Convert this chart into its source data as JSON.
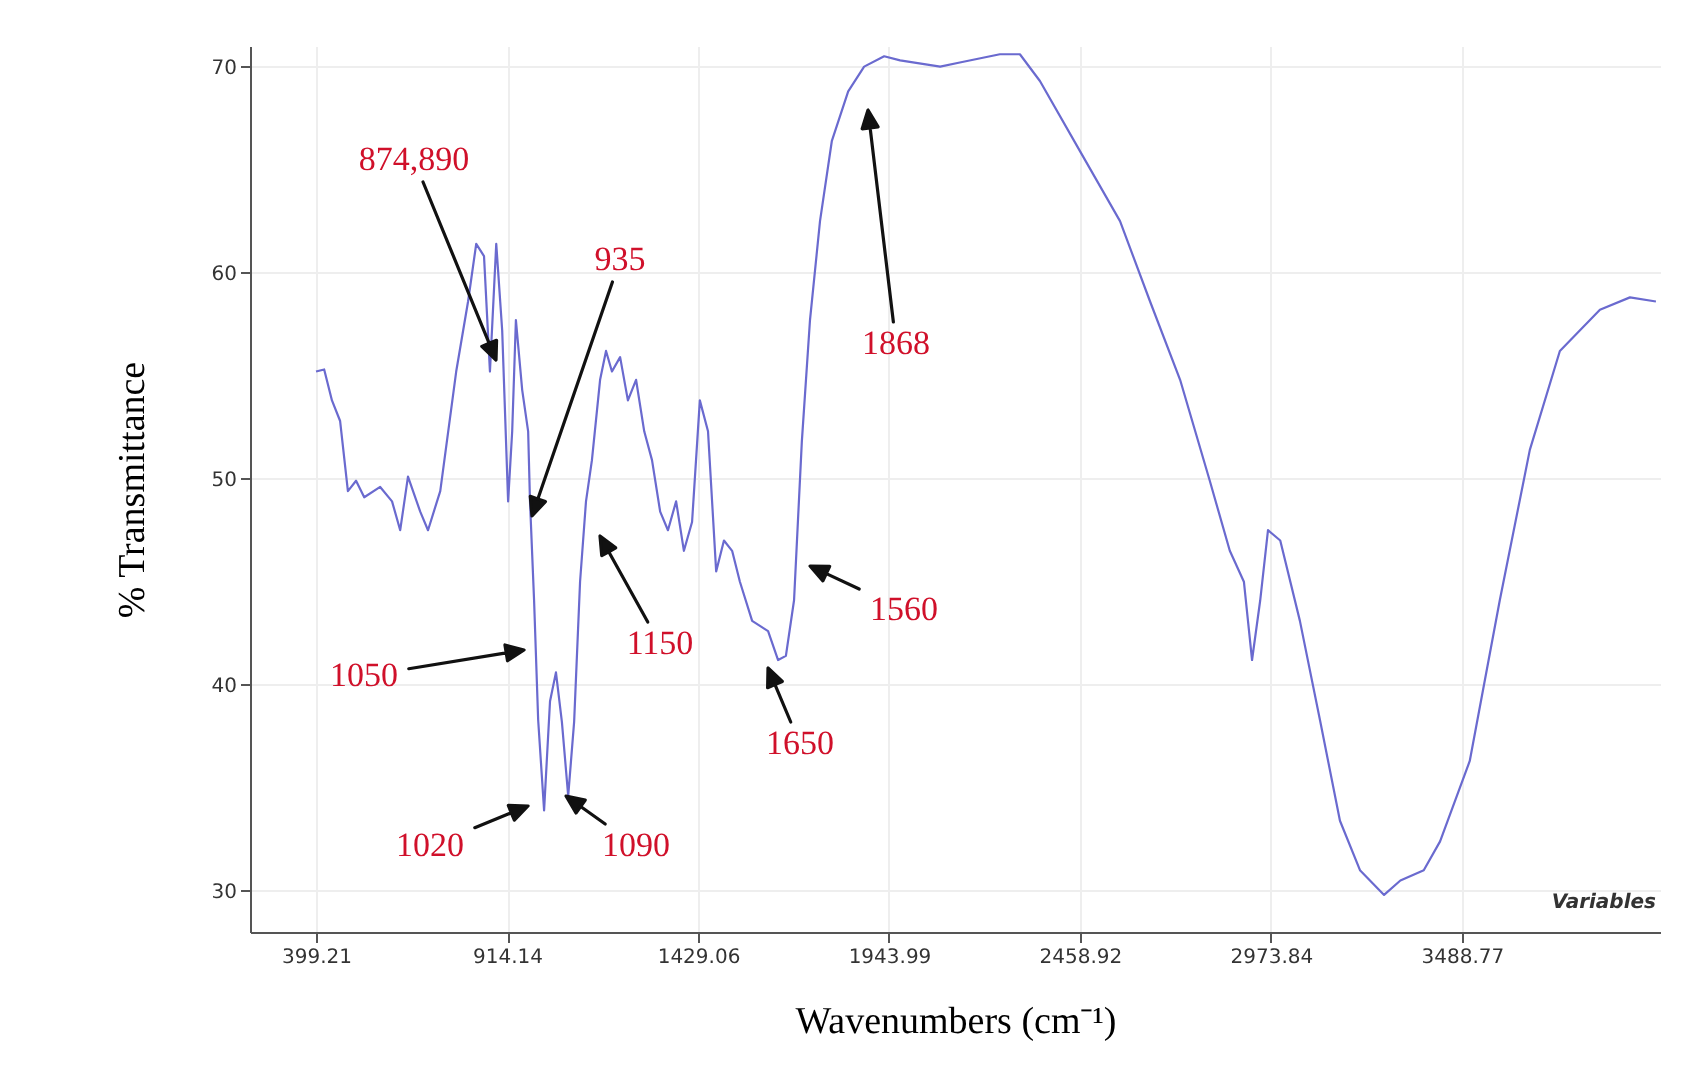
{
  "chart_data": {
    "type": "line",
    "xlabel": "Wavenumbers (cm⁻¹)",
    "ylabel": "% Transmittance",
    "xlim": [
      221,
      4023
    ],
    "ylim": [
      28,
      71
    ],
    "xticks": [
      399.21,
      914.14,
      1429.06,
      1943.99,
      2458.92,
      2973.84,
      3488.77
    ],
    "yticks": [
      30,
      40,
      50,
      60,
      70
    ],
    "grid": true,
    "marker": "none",
    "line_style": "solid",
    "x": [
      399,
      421,
      442,
      464,
      485,
      507,
      529,
      572,
      604,
      626,
      647,
      680,
      701,
      734,
      777,
      809,
      831,
      852,
      868,
      885,
      901,
      917,
      928,
      938,
      955,
      971,
      976,
      987,
      998,
      1014,
      1030,
      1046,
      1062,
      1079,
      1095,
      1111,
      1127,
      1143,
      1165,
      1181,
      1197,
      1219,
      1240,
      1262,
      1284,
      1305,
      1327,
      1348,
      1370,
      1391,
      1413,
      1434,
      1456,
      1478,
      1499,
      1521,
      1542,
      1575,
      1618,
      1645,
      1666,
      1688,
      1709,
      1731,
      1758,
      1790,
      1834,
      1877,
      1931,
      1974,
      2082,
      2135,
      2243,
      2297,
      2351,
      2459,
      2567,
      2648,
      2729,
      2809,
      2863,
      2901,
      2923,
      2945,
      2966,
      2999,
      3052,
      3106,
      3160,
      3214,
      3279,
      3323,
      3386,
      3430,
      3510,
      3591,
      3672,
      3753,
      3861,
      3942,
      4012
    ],
    "series": [
      {
        "color": "#6a6acf",
        "values": [
          55.2,
          55.3,
          53.8,
          52.8,
          49.4,
          49.9,
          49.1,
          49.6,
          48.9,
          47.5,
          50.1,
          48.4,
          47.5,
          49.4,
          55.2,
          58.6,
          61.4,
          60.8,
          55.2,
          61.4,
          57.2,
          48.9,
          52.3,
          57.7,
          54.3,
          52.3,
          48.9,
          44.1,
          38.3,
          33.9,
          39.2,
          40.6,
          38.2,
          34.6,
          38.2,
          45,
          48.9,
          50.9,
          54.8,
          56.2,
          55.2,
          55.9,
          53.8,
          54.8,
          52.3,
          50.9,
          48.4,
          47.5,
          48.9,
          46.5,
          47.9,
          53.8,
          52.3,
          45.5,
          47,
          46.5,
          45,
          43.1,
          42.6,
          41.2,
          41.4,
          44.1,
          51.8,
          57.7,
          62.5,
          66.4,
          68.8,
          70,
          70.5,
          70.3,
          70,
          70.2,
          70.6,
          70.6,
          69.3,
          65.9,
          62.5,
          58.6,
          54.8,
          49.9,
          46.5,
          45,
          41.2,
          44.1,
          47.5,
          47,
          43.1,
          38.3,
          33.4,
          31,
          29.8,
          30.5,
          31,
          32.4,
          36.3,
          44.1,
          51.4,
          56.2,
          58.2,
          58.8,
          58.6
        ]
      }
    ],
    "annotations": [
      "874,890",
      "935",
      "1868",
      "1050",
      "1150",
      "1560",
      "1650",
      "1020",
      "1090",
      "Variables"
    ]
  }
}
